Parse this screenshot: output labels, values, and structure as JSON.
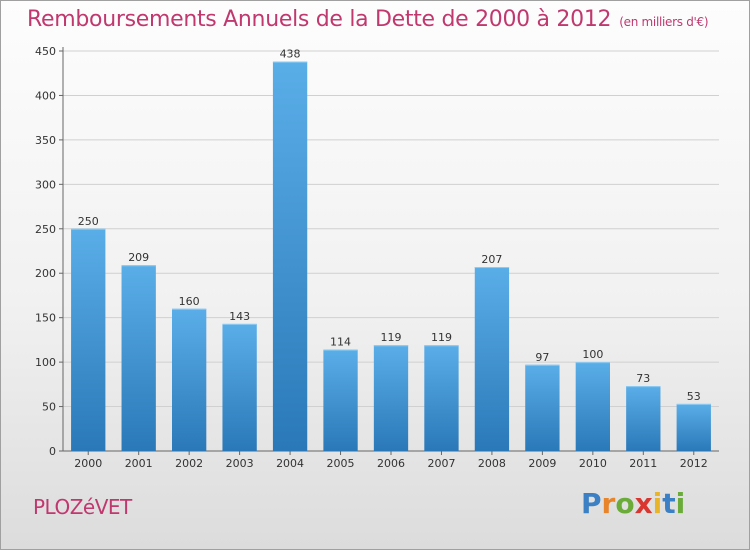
{
  "page": {
    "title": "Remboursements Annuels de la Dette de 2000 à 2012",
    "subtitle": "(en milliers d'€)",
    "commune": "PLOZéVET",
    "logo": "Proxiti",
    "logo_letters": [
      {
        "ch": "P",
        "color": "#3b7fc4"
      },
      {
        "ch": "r",
        "color": "#e8842a"
      },
      {
        "ch": "o",
        "color": "#6aab3a"
      },
      {
        "ch": "x",
        "color": "#d8362e"
      },
      {
        "ch": "i",
        "color": "#e8b52a"
      },
      {
        "ch": "t",
        "color": "#3b7fc4"
      },
      {
        "ch": "i",
        "color": "#6aab3a"
      }
    ]
  },
  "colors": {
    "title": "#c0386e",
    "bar_light": "#5aaee8",
    "bar_dark": "#2a78b8",
    "grid": "#d0d0d0"
  },
  "chart_data": {
    "type": "bar",
    "title": "Remboursements Annuels de la Dette de 2000 à 2012",
    "subtitle": "(en milliers d'€)",
    "categories": [
      "2000",
      "2001",
      "2002",
      "2003",
      "2004",
      "2005",
      "2006",
      "2007",
      "2008",
      "2009",
      "2010",
      "2011",
      "2012"
    ],
    "values": [
      250,
      209,
      160,
      143,
      438,
      114,
      119,
      119,
      207,
      97,
      100,
      73,
      53
    ],
    "ylim": [
      0,
      450
    ],
    "yticks": [
      0,
      50,
      100,
      150,
      200,
      250,
      300,
      350,
      400,
      450
    ],
    "grid": true,
    "legend": "none"
  }
}
